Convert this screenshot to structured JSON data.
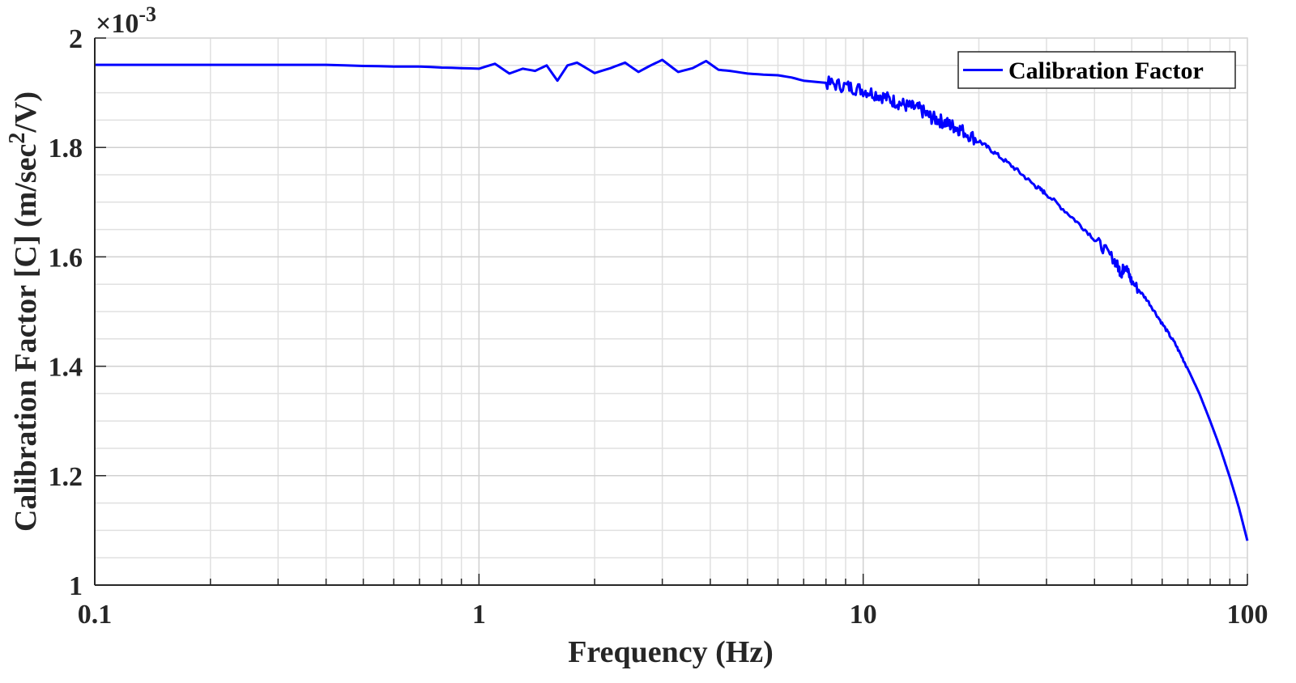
{
  "chart_data": {
    "type": "line",
    "title": "",
    "xlabel": "Frequency (Hz)",
    "ylabel": "Calibration Factor [C] (m/sec^2/V)",
    "ylabel_parts": {
      "main": "Calibration Factor [C] (m/sec",
      "sup": "2",
      "tail": "/V)"
    },
    "x_scale": "log",
    "xlim": [
      0.1,
      100
    ],
    "ylim": [
      0.001,
      0.002
    ],
    "y_multiplier": "×10",
    "y_multiplier_exp": "-3",
    "x_ticks": [
      0.1,
      1,
      10,
      100
    ],
    "x_tick_labels": [
      "0.1",
      "1",
      "10",
      "100"
    ],
    "y_ticks": [
      1.0,
      1.2,
      1.4,
      1.6,
      1.8,
      2.0
    ],
    "y_tick_labels": [
      "1",
      "1.2",
      "1.4",
      "1.6",
      "1.8",
      "2"
    ],
    "grid": true,
    "minor_grid": true,
    "legend_position": "upper right",
    "series": [
      {
        "name": "Calibration Factor",
        "color": "#0000ff",
        "x": [
          0.1,
          0.2,
          0.3,
          0.4,
          0.5,
          0.6,
          0.7,
          0.8,
          0.9,
          1.0,
          1.1,
          1.2,
          1.3,
          1.4,
          1.5,
          1.6,
          1.7,
          1.8,
          2.0,
          2.2,
          2.4,
          2.6,
          2.8,
          3.0,
          3.3,
          3.6,
          3.9,
          4.2,
          4.5,
          5.0,
          5.5,
          6.0,
          6.5,
          7.0,
          8.0,
          9.0,
          10,
          11,
          12,
          13,
          14,
          15,
          16,
          17,
          18,
          20,
          22,
          25,
          28,
          30,
          35,
          40,
          45,
          47,
          48,
          50,
          55,
          60,
          65,
          70,
          75,
          80,
          85,
          90,
          95,
          100
        ],
        "values": [
          1.951,
          1.951,
          1.951,
          1.951,
          1.949,
          1.948,
          1.948,
          1.946,
          1.945,
          1.944,
          1.953,
          1.935,
          1.944,
          1.94,
          1.95,
          1.922,
          1.95,
          1.955,
          1.936,
          1.945,
          1.955,
          1.938,
          1.95,
          1.96,
          1.938,
          1.945,
          1.958,
          1.942,
          1.94,
          1.935,
          1.933,
          1.932,
          1.928,
          1.922,
          1.918,
          1.912,
          1.905,
          1.896,
          1.885,
          1.876,
          1.87,
          1.855,
          1.848,
          1.84,
          1.832,
          1.812,
          1.79,
          1.76,
          1.73,
          1.715,
          1.672,
          1.633,
          1.595,
          1.57,
          1.585,
          1.555,
          1.52,
          1.478,
          1.44,
          1.395,
          1.35,
          1.3,
          1.25,
          1.197,
          1.142,
          1.081
        ]
      }
    ]
  },
  "legend": {
    "label": "Calibration Factor",
    "line_color": "#0000ff"
  },
  "axes": {
    "xlabel": "Frequency (Hz)",
    "ylabel_main": "Calibration Factor [C] (m/sec",
    "ylabel_sup": "2",
    "ylabel_tail": "/V)",
    "multiplier_base": "×10",
    "multiplier_exp": "-3"
  }
}
